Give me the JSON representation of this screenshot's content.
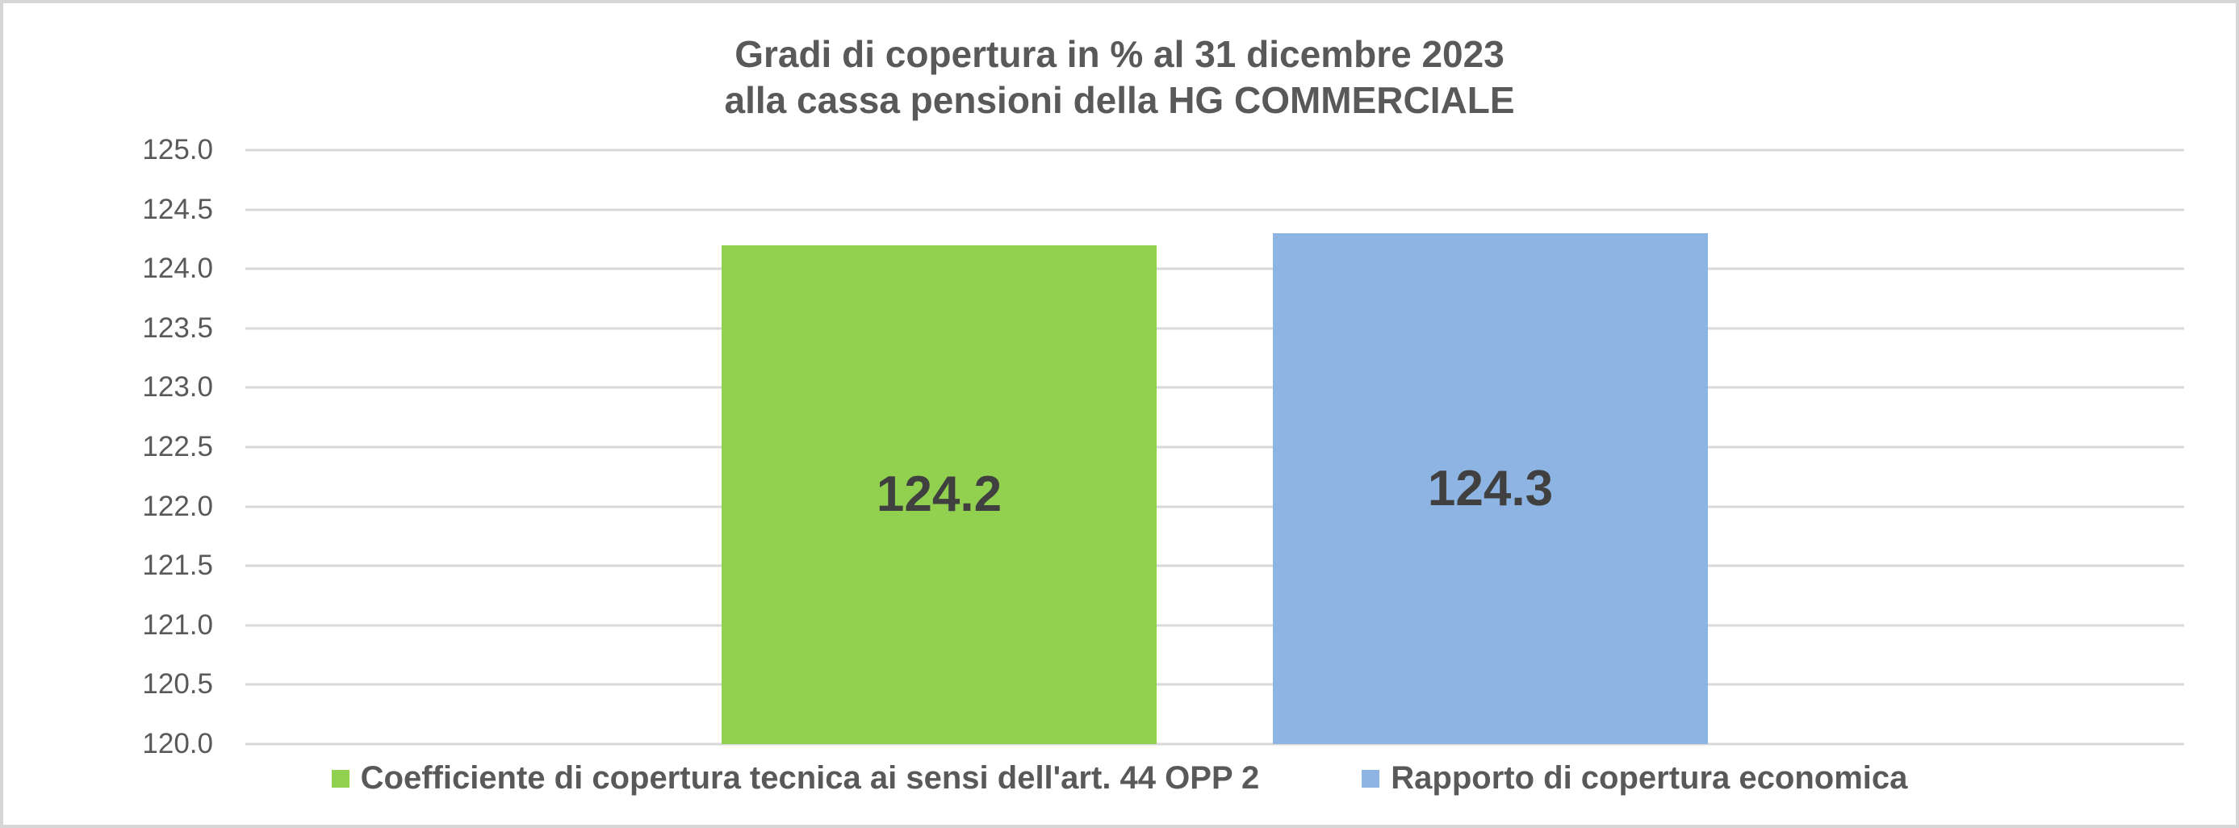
{
  "window": {
    "background": "#FFFFFF",
    "border_color": "#D6D6D6"
  },
  "title": {
    "line1": "Gradi di copertura in % al 31 dicembre 2023",
    "line2": "alla cassa pensioni della HG COMMERCIALE",
    "color": "#595959"
  },
  "chart_data": {
    "type": "bar",
    "title": "Gradi di copertura in % al 31 dicembre 2023 alla cassa pensioni della HG COMMERCIALE",
    "categories": [
      ""
    ],
    "series": [
      {
        "name": "Coefficiente di copertura tecnica ai sensi dell'art. 44 OPP 2",
        "values": [
          124.2
        ],
        "label": "124.2",
        "color": "#92D050"
      },
      {
        "name": "Rapporto di copertura economica",
        "values": [
          124.3
        ],
        "label": "124.3",
        "color": "#8DB4E2"
      }
    ],
    "ylim": [
      120.0,
      125.0
    ],
    "ytick_step": 0.5,
    "ytick_labels": [
      "125.0",
      "124.5",
      "124.0",
      "123.5",
      "123.0",
      "122.5",
      "122.0",
      "121.5",
      "121.0",
      "120.5",
      "120.0"
    ],
    "grid": "horizontal",
    "gridline_color": "#D9D9D9",
    "axis_label_color": "#595959",
    "value_label_color": "#404040",
    "legend_position": "bottom"
  }
}
